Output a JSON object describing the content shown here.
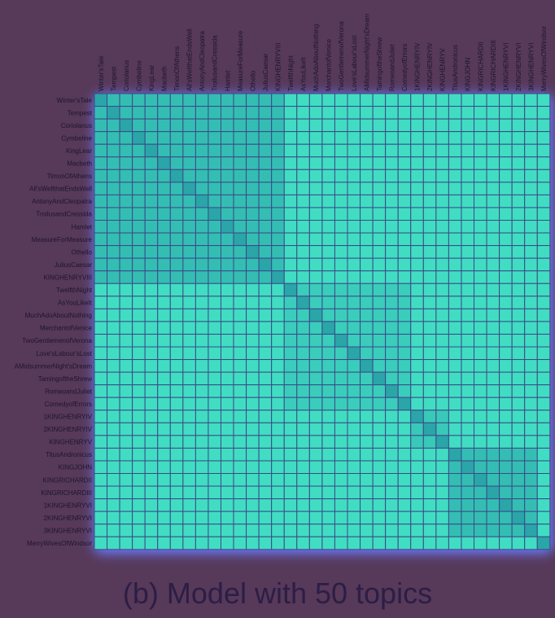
{
  "caption": "(b) Model with 50 topics",
  "colors": {
    "background": "#57395a",
    "grid_line": "#3b4a88",
    "glow": "#6c79ff",
    "low_similarity": "#45e6c6",
    "high_similarity": "#2aa5a8",
    "label_text": "#1e1430"
  },
  "chart_data": {
    "type": "heatmap",
    "title": "",
    "xlabel": "",
    "ylabel": "",
    "labels": [
      "Winter'sTale",
      "Tempest",
      "Coriolanus",
      "Cymbeline",
      "KingLear",
      "Macbeth",
      "TimonOfAthens",
      "All'sWellthatEndsWell",
      "AntonyAndCleopatra",
      "TroilusandCressida",
      "Hamlet",
      "MeasureForMeasure",
      "Othello",
      "JuliusCaesar",
      "KINGHENRYVIII",
      "TwelfthNight",
      "AsYouLikeIt",
      "MuchAdoAboutNothing",
      "MerchantofVenice",
      "TwoGentlemenofVerona",
      "Love'sLabour'sLost",
      "AMidsummerNight'sDream",
      "TamingoftheShrew",
      "RomeoandJuliet",
      "ComedyofErrors",
      "1KINGHENRYIV",
      "2KINGHENRYIV",
      "KINGHENRYV",
      "TitusAndronicus",
      "KINGJOHN",
      "KINGRICHARDII",
      "KINGRICHARDIII",
      "1KINGHENRYVI",
      "2KINGHENRYVI",
      "3KINGHENRYVI",
      "MerryWivesOfWindsor"
    ],
    "groups": [
      {
        "name": "tragedies_romances",
        "start": 0,
        "end": 14,
        "within": 0.62
      },
      {
        "name": "comedies",
        "start": 15,
        "end": 24,
        "within": 0.38
      },
      {
        "name": "henry_iv_v",
        "start": 25,
        "end": 27,
        "within": 0.45
      },
      {
        "name": "histories",
        "start": 28,
        "end": 34,
        "within": 0.62
      },
      {
        "name": "merry_wives",
        "start": 35,
        "end": 35,
        "within": 1.0
      }
    ],
    "between_groups": 0.14,
    "diagonal": 1.0,
    "value_range": [
      0,
      1
    ]
  }
}
